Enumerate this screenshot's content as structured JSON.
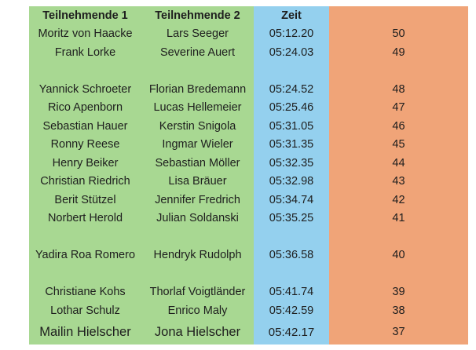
{
  "chart_data": {
    "type": "table",
    "columns": [
      {
        "label": "Teilnehmende 1",
        "color": "#a8d892"
      },
      {
        "label": "Teilnehmende 2",
        "color": "#a8d892"
      },
      {
        "label": "Zeit",
        "color": "#94d0ee"
      },
      {
        "label": "",
        "color": "#f0a478"
      }
    ],
    "rows": [
      {
        "teilnehmende1": "Moritz von Haacke",
        "teilnehmende2": "Lars Seeger",
        "zeit": "05:12.20",
        "number": "50"
      },
      {
        "teilnehmende1": "Frank Lorke",
        "teilnehmende2": "Severine Auert",
        "zeit": "05:24.03",
        "number": "49"
      },
      {
        "blank": true
      },
      {
        "teilnehmende1": "Yannick Schroeter",
        "teilnehmende2": "Florian Bredemann",
        "zeit": "05:24.52",
        "number": "48"
      },
      {
        "teilnehmende1": "Rico Apenborn",
        "teilnehmende2": "Lucas Hellemeier",
        "zeit": "05:25.46",
        "number": "47"
      },
      {
        "teilnehmende1": "Sebastian Hauer",
        "teilnehmende2": "Kerstin Snigola",
        "zeit": "05:31.05",
        "number": "46"
      },
      {
        "teilnehmende1": "Ronny Reese",
        "teilnehmende2": "Ingmar Wieler",
        "zeit": "05:31.35",
        "number": "45"
      },
      {
        "teilnehmende1": "Henry Beiker",
        "teilnehmende2": "Sebastian Möller",
        "zeit": "05:32.35",
        "number": "44"
      },
      {
        "teilnehmende1": "Christian Riedrich",
        "teilnehmende2": "Lisa Bräuer",
        "zeit": "05:32.98",
        "number": "43"
      },
      {
        "teilnehmende1": "Berit Stützel",
        "teilnehmende2": "Jennifer Fredrich",
        "zeit": "05:34.74",
        "number": "42"
      },
      {
        "teilnehmende1": "Norbert Herold",
        "teilnehmende2": "Julian Soldanski",
        "zeit": "05:35.25",
        "number": "41"
      },
      {
        "blank": true
      },
      {
        "teilnehmende1": "Yadira Roa Romero",
        "teilnehmende2": "Hendryk Rudolph",
        "zeit": "05:36.58",
        "number": "40"
      },
      {
        "blank": true
      },
      {
        "teilnehmende1": "Christiane Kohs",
        "teilnehmende2": "Thorlaf Voigtländer",
        "zeit": "05:41.74",
        "number": "39"
      },
      {
        "teilnehmende1": "Lothar Schulz",
        "teilnehmende2": "Enrico Maly",
        "zeit": "05:42.59",
        "number": "38"
      },
      {
        "teilnehmende1": "Mailin Hielscher",
        "teilnehmende2": "Jona Hielscher",
        "zeit": "05:42.17",
        "number": "37",
        "style": "alt-font"
      }
    ]
  },
  "header": {
    "col1": "Teilnehmende 1",
    "col2": "Teilnehmende 2",
    "col3": "Zeit",
    "col4": ""
  },
  "colors": {
    "green": "#a8d892",
    "blue": "#94d0ee",
    "orange": "#f0a478",
    "text": "#1e1e1e",
    "background": "#ffffff"
  }
}
